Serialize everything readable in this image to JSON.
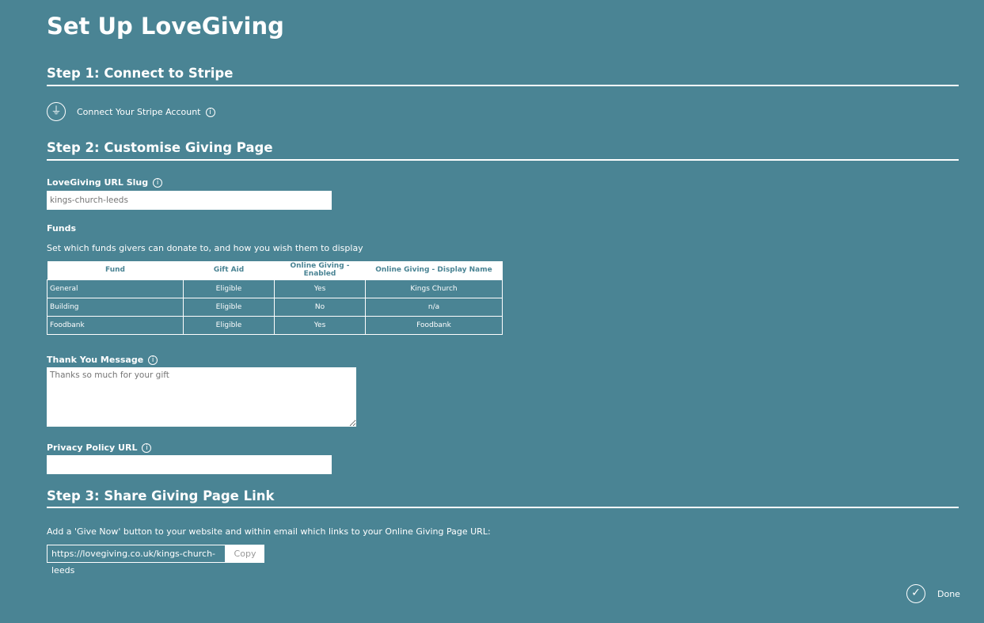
{
  "title": "Set Up LoveGiving",
  "step1": {
    "heading": "Step 1: Connect to Stripe",
    "connect_label": "Connect Your Stripe Account"
  },
  "step2": {
    "heading": "Step 2: Customise Giving Page",
    "slug_label": "LoveGiving URL Slug",
    "slug_placeholder": "kings-church-leeds",
    "funds_label": "Funds",
    "funds_desc": "Set which funds givers can donate to, and how you wish them to display",
    "table": {
      "headers": [
        "Fund",
        "Gift Aid",
        "Online Giving - Enabled",
        "Online Giving - Display Name"
      ],
      "rows": [
        [
          "General",
          "Eligible",
          "Yes",
          "Kings Church"
        ],
        [
          "Building",
          "Eligible",
          "No",
          "n/a"
        ],
        [
          "Foodbank",
          "Eligible",
          "Yes",
          "Foodbank"
        ]
      ]
    },
    "thanks_label": "Thank You Message",
    "thanks_placeholder": "Thanks so much for your gift",
    "privacy_label": "Privacy Policy URL",
    "privacy_value": ""
  },
  "step3": {
    "heading": "Step 3: Share Giving Page Link",
    "desc": "Add a 'Give Now' button to your website and within email which links to your Online Giving Page URL:",
    "url": "https://lovegiving.co.uk/kings-church-leeds",
    "copy_label": "Copy"
  },
  "done_label": "Done"
}
